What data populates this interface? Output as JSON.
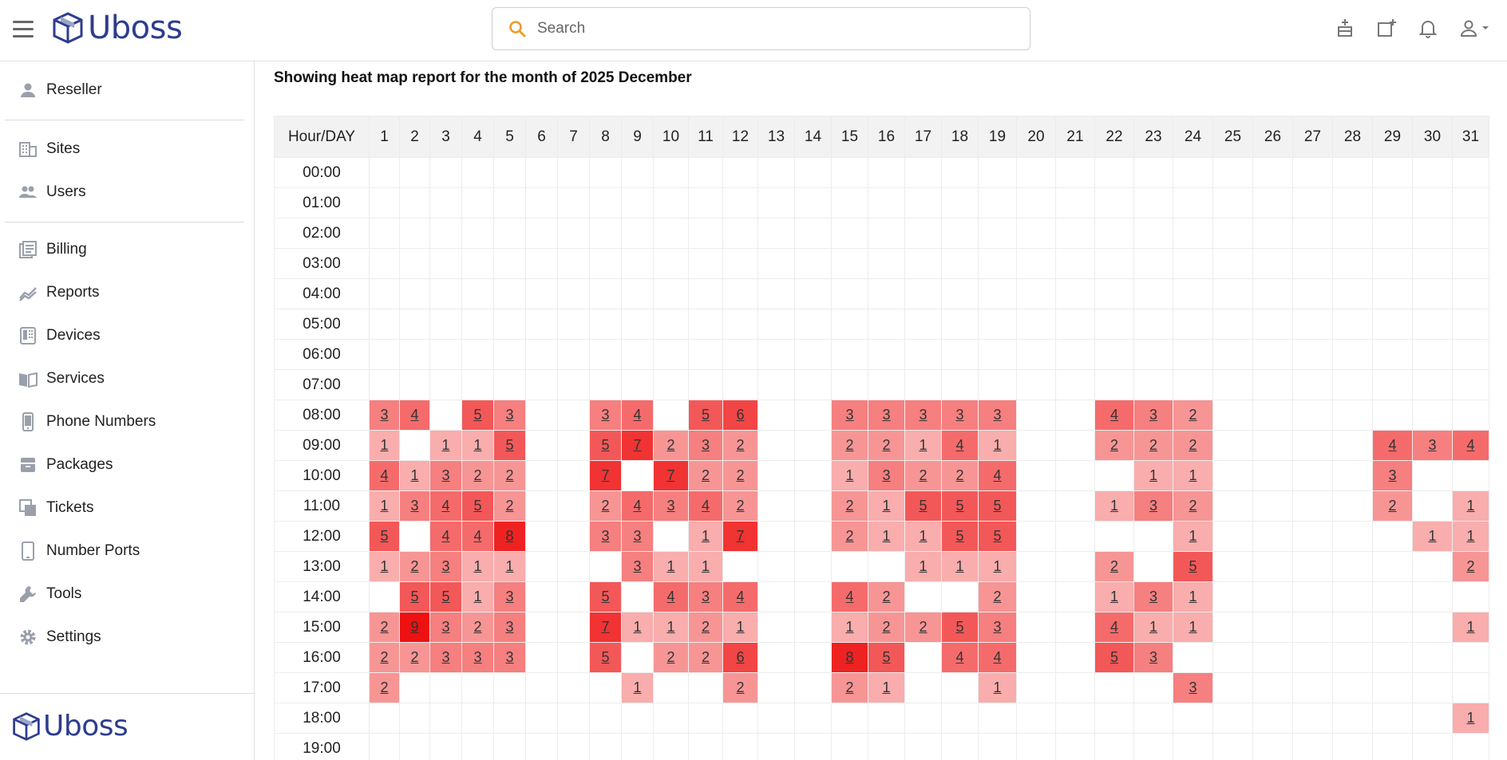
{
  "header": {
    "brand": "Uboss",
    "search_placeholder": "Search",
    "icons": [
      "add-site-icon",
      "add-item-icon",
      "bell-icon",
      "user-account-icon"
    ]
  },
  "sidebar": {
    "items": [
      {
        "label": "Reseller",
        "icon": "person-icon"
      },
      {
        "label": "Sites",
        "icon": "building-icon"
      },
      {
        "label": "Users",
        "icon": "users-icon"
      },
      {
        "label": "Billing",
        "icon": "billing-icon"
      },
      {
        "label": "Reports",
        "icon": "chart-icon"
      },
      {
        "label": "Devices",
        "icon": "device-icon"
      },
      {
        "label": "Services",
        "icon": "book-icon"
      },
      {
        "label": "Phone Numbers",
        "icon": "phone-icon"
      },
      {
        "label": "Packages",
        "icon": "package-icon"
      },
      {
        "label": "Tickets",
        "icon": "tickets-icon"
      },
      {
        "label": "Number Ports",
        "icon": "mobile-icon"
      },
      {
        "label": "Tools",
        "icon": "wrench-icon"
      },
      {
        "label": "Settings",
        "icon": "gear-icon"
      }
    ],
    "footer_brand": "Uboss"
  },
  "report": {
    "title": "Showing heat map report for the month of 2025 December",
    "corner_label": "Hour/DAY",
    "days": [
      "1",
      "2",
      "3",
      "4",
      "5",
      "6",
      "7",
      "8",
      "9",
      "10",
      "11",
      "12",
      "13",
      "14",
      "15",
      "16",
      "17",
      "18",
      "19",
      "20",
      "21",
      "22",
      "23",
      "24",
      "25",
      "26",
      "27",
      "28",
      "29",
      "30",
      "31"
    ],
    "hours": [
      "00:00",
      "01:00",
      "02:00",
      "03:00",
      "04:00",
      "05:00",
      "06:00",
      "07:00",
      "08:00",
      "09:00",
      "10:00",
      "11:00",
      "12:00",
      "13:00",
      "14:00",
      "15:00",
      "16:00",
      "17:00",
      "18:00",
      "19:00"
    ],
    "max_value": 9,
    "color_scale": {
      "low": "#ffffff",
      "high": "#ee1111"
    },
    "cells": {
      "08:00": {
        "1": 3,
        "2": 4,
        "4": 5,
        "5": 3,
        "8": 3,
        "9": 4,
        "11": 5,
        "12": 6,
        "15": 3,
        "16": 3,
        "17": 3,
        "18": 3,
        "19": 3,
        "22": 4,
        "23": 3,
        "24": 2
      },
      "09:00": {
        "1": 1,
        "3": 1,
        "4": 1,
        "5": 5,
        "8": 5,
        "9": 7,
        "10": 2,
        "11": 3,
        "12": 2,
        "15": 2,
        "16": 2,
        "17": 1,
        "18": 4,
        "19": 1,
        "22": 2,
        "23": 2,
        "24": 2,
        "29": 4,
        "30": 3,
        "31": 4
      },
      "10:00": {
        "1": 4,
        "2": 1,
        "3": 3,
        "4": 2,
        "5": 2,
        "8": 7,
        "10": 7,
        "11": 2,
        "12": 2,
        "15": 1,
        "16": 3,
        "17": 2,
        "18": 2,
        "19": 4,
        "23": 1,
        "24": 1,
        "29": 3
      },
      "11:00": {
        "1": 1,
        "2": 3,
        "3": 4,
        "4": 5,
        "5": 2,
        "8": 2,
        "9": 4,
        "10": 3,
        "11": 4,
        "12": 2,
        "15": 2,
        "16": 1,
        "17": 5,
        "18": 5,
        "19": 5,
        "22": 1,
        "23": 3,
        "24": 2,
        "29": 2,
        "31": 1
      },
      "12:00": {
        "1": 5,
        "3": 4,
        "4": 4,
        "5": 8,
        "8": 3,
        "9": 3,
        "11": 1,
        "12": 7,
        "15": 2,
        "16": 1,
        "17": 1,
        "18": 5,
        "19": 5,
        "24": 1,
        "30": 1,
        "31": 1
      },
      "13:00": {
        "1": 1,
        "2": 2,
        "3": 3,
        "4": 1,
        "5": 1,
        "9": 3,
        "10": 1,
        "11": 1,
        "17": 1,
        "18": 1,
        "19": 1,
        "22": 2,
        "24": 5,
        "31": 2
      },
      "14:00": {
        "2": 5,
        "3": 5,
        "4": 1,
        "5": 3,
        "8": 5,
        "10": 4,
        "11": 3,
        "12": 4,
        "15": 4,
        "16": 2,
        "19": 2,
        "22": 1,
        "23": 3,
        "24": 1
      },
      "15:00": {
        "1": 2,
        "2": 9,
        "3": 3,
        "4": 2,
        "5": 3,
        "8": 7,
        "9": 1,
        "10": 1,
        "11": 2,
        "12": 1,
        "15": 1,
        "16": 2,
        "17": 2,
        "18": 5,
        "19": 3,
        "22": 4,
        "23": 1,
        "24": 1,
        "31": 1
      },
      "16:00": {
        "1": 2,
        "2": 2,
        "3": 3,
        "4": 3,
        "5": 3,
        "8": 5,
        "10": 2,
        "11": 2,
        "12": 6,
        "15": 8,
        "16": 5,
        "18": 4,
        "19": 4,
        "22": 5,
        "23": 3
      },
      "17:00": {
        "1": 2,
        "9": 1,
        "12": 2,
        "15": 2,
        "16": 1,
        "19": 1,
        "24": 3
      },
      "18:00": {
        "31": 1
      }
    }
  }
}
